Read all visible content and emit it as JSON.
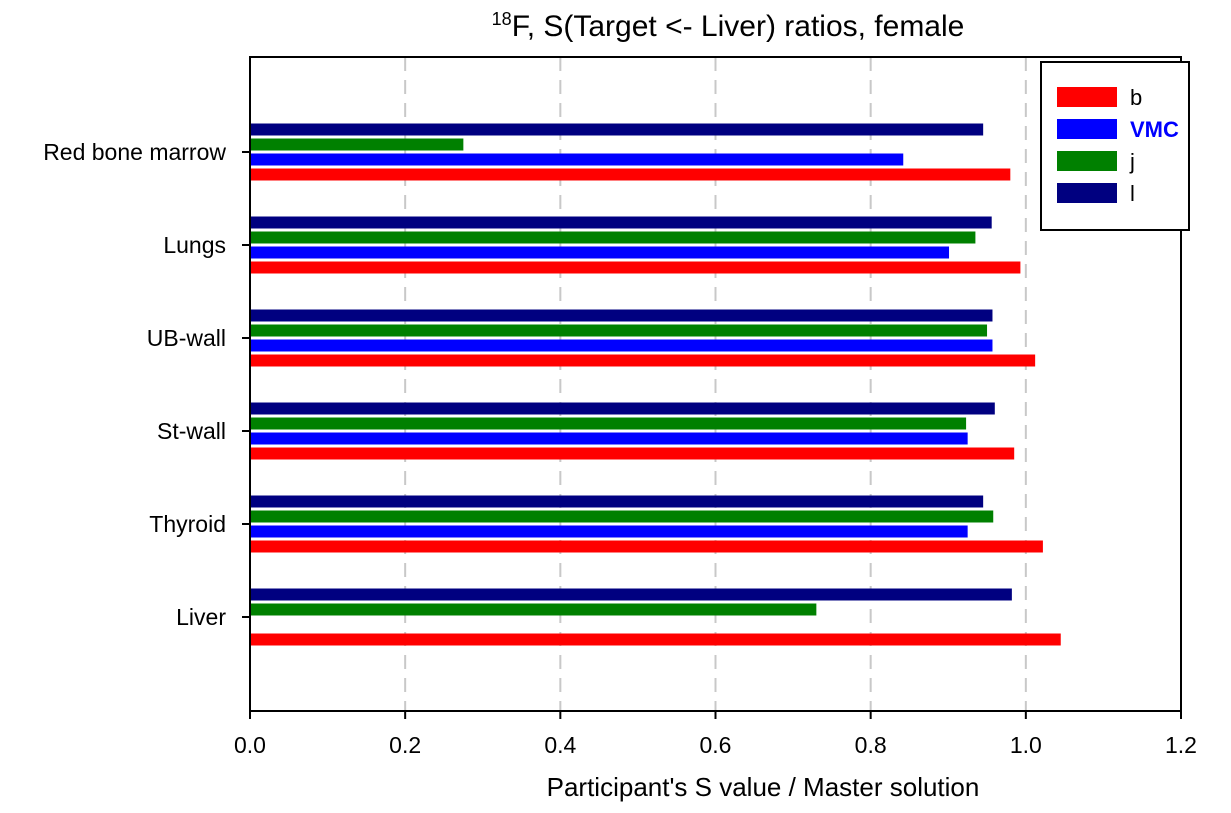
{
  "chart_data": {
    "type": "bar",
    "orientation": "horizontal",
    "title": {
      "superscript": "18",
      "text": "F, S(Target <- Liver) ratios, female"
    },
    "xlabel": "Participant's S value / Master solution",
    "ylabel": "",
    "xlim": [
      0.0,
      1.2
    ],
    "xticks": [
      "0.0",
      "0.2",
      "0.4",
      "0.6",
      "0.8",
      "1.0",
      "1.2"
    ],
    "grid": "vertical dashed",
    "legend_position": "top-right",
    "categories": [
      "Red bone marrow",
      "Lungs",
      "UB-wall",
      "St-wall",
      "Thyroid",
      "Liver"
    ],
    "series": [
      {
        "name": "b",
        "color": "#ff0000",
        "values": [
          0.98,
          0.993,
          1.012,
          0.985,
          1.022,
          1.045
        ]
      },
      {
        "name": "VMC",
        "color": "#0000ff",
        "values": [
          0.842,
          0.901,
          0.957,
          0.925,
          0.925,
          null
        ]
      },
      {
        "name": "j",
        "color": "#008000",
        "values": [
          0.275,
          0.935,
          0.95,
          0.923,
          0.958,
          0.73
        ]
      },
      {
        "name": "l",
        "color": "#000080",
        "values": [
          0.945,
          0.956,
          0.957,
          0.96,
          0.945,
          0.982
        ]
      }
    ]
  }
}
